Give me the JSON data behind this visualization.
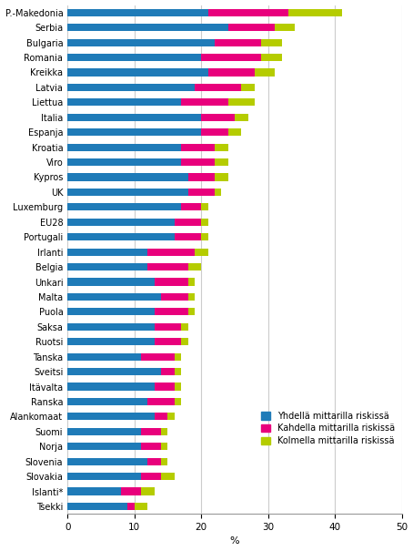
{
  "countries": [
    "P.-Makedonia",
    "Serbia",
    "Bulgaria",
    "Romania",
    "Kreikka",
    "Latvia",
    "Liettua",
    "Italia",
    "Espanja",
    "Kroatia",
    "Viro",
    "Kypros",
    "UK",
    "Luxemburg",
    "EU28",
    "Portugali",
    "Irlanti",
    "Belgia",
    "Unkari",
    "Malta",
    "Puola",
    "Saksa",
    "Ruotsi",
    "Tanska",
    "Sveitsi",
    "Itävalta",
    "Ranska",
    "Alankomaat",
    "Suomi",
    "Norja",
    "Slovenia",
    "Slovakia",
    "Islanti*",
    "Tsekki"
  ],
  "v1": [
    21,
    24,
    22,
    20,
    21,
    19,
    17,
    20,
    20,
    17,
    17,
    18,
    18,
    17,
    16,
    16,
    12,
    12,
    13,
    14,
    13,
    13,
    13,
    11,
    14,
    13,
    12,
    13,
    11,
    11,
    12,
    11,
    8,
    9
  ],
  "v2": [
    12,
    7,
    7,
    9,
    7,
    7,
    7,
    5,
    4,
    5,
    5,
    4,
    4,
    3,
    4,
    4,
    7,
    6,
    5,
    4,
    5,
    4,
    4,
    5,
    2,
    3,
    4,
    2,
    3,
    3,
    2,
    3,
    3,
    1
  ],
  "v3": [
    8,
    3,
    3,
    3,
    3,
    2,
    4,
    2,
    2,
    2,
    2,
    2,
    1,
    1,
    1,
    1,
    2,
    2,
    1,
    1,
    1,
    1,
    1,
    1,
    1,
    1,
    1,
    1,
    1,
    1,
    1,
    2,
    2,
    2
  ],
  "color1": "#1f7bb8",
  "color2": "#e8007c",
  "color3": "#b5cc00",
  "legend_labels": [
    "Yhdellä mittarilla riskissä",
    "Kahdella mittarilla riskissä",
    "Kolmella mittarilla riskissä"
  ],
  "xlabel": "%",
  "xlim": [
    0,
    50
  ],
  "xticks": [
    0,
    10,
    20,
    30,
    40,
    50
  ],
  "grid_color": "#cccccc",
  "bar_height": 0.5,
  "figsize": [
    4.54,
    6.05
  ],
  "dpi": 100,
  "fontsize_ytick": 7.0,
  "fontsize_xtick": 7.5,
  "fontsize_xlabel": 8.0,
  "fontsize_legend": 7.0
}
